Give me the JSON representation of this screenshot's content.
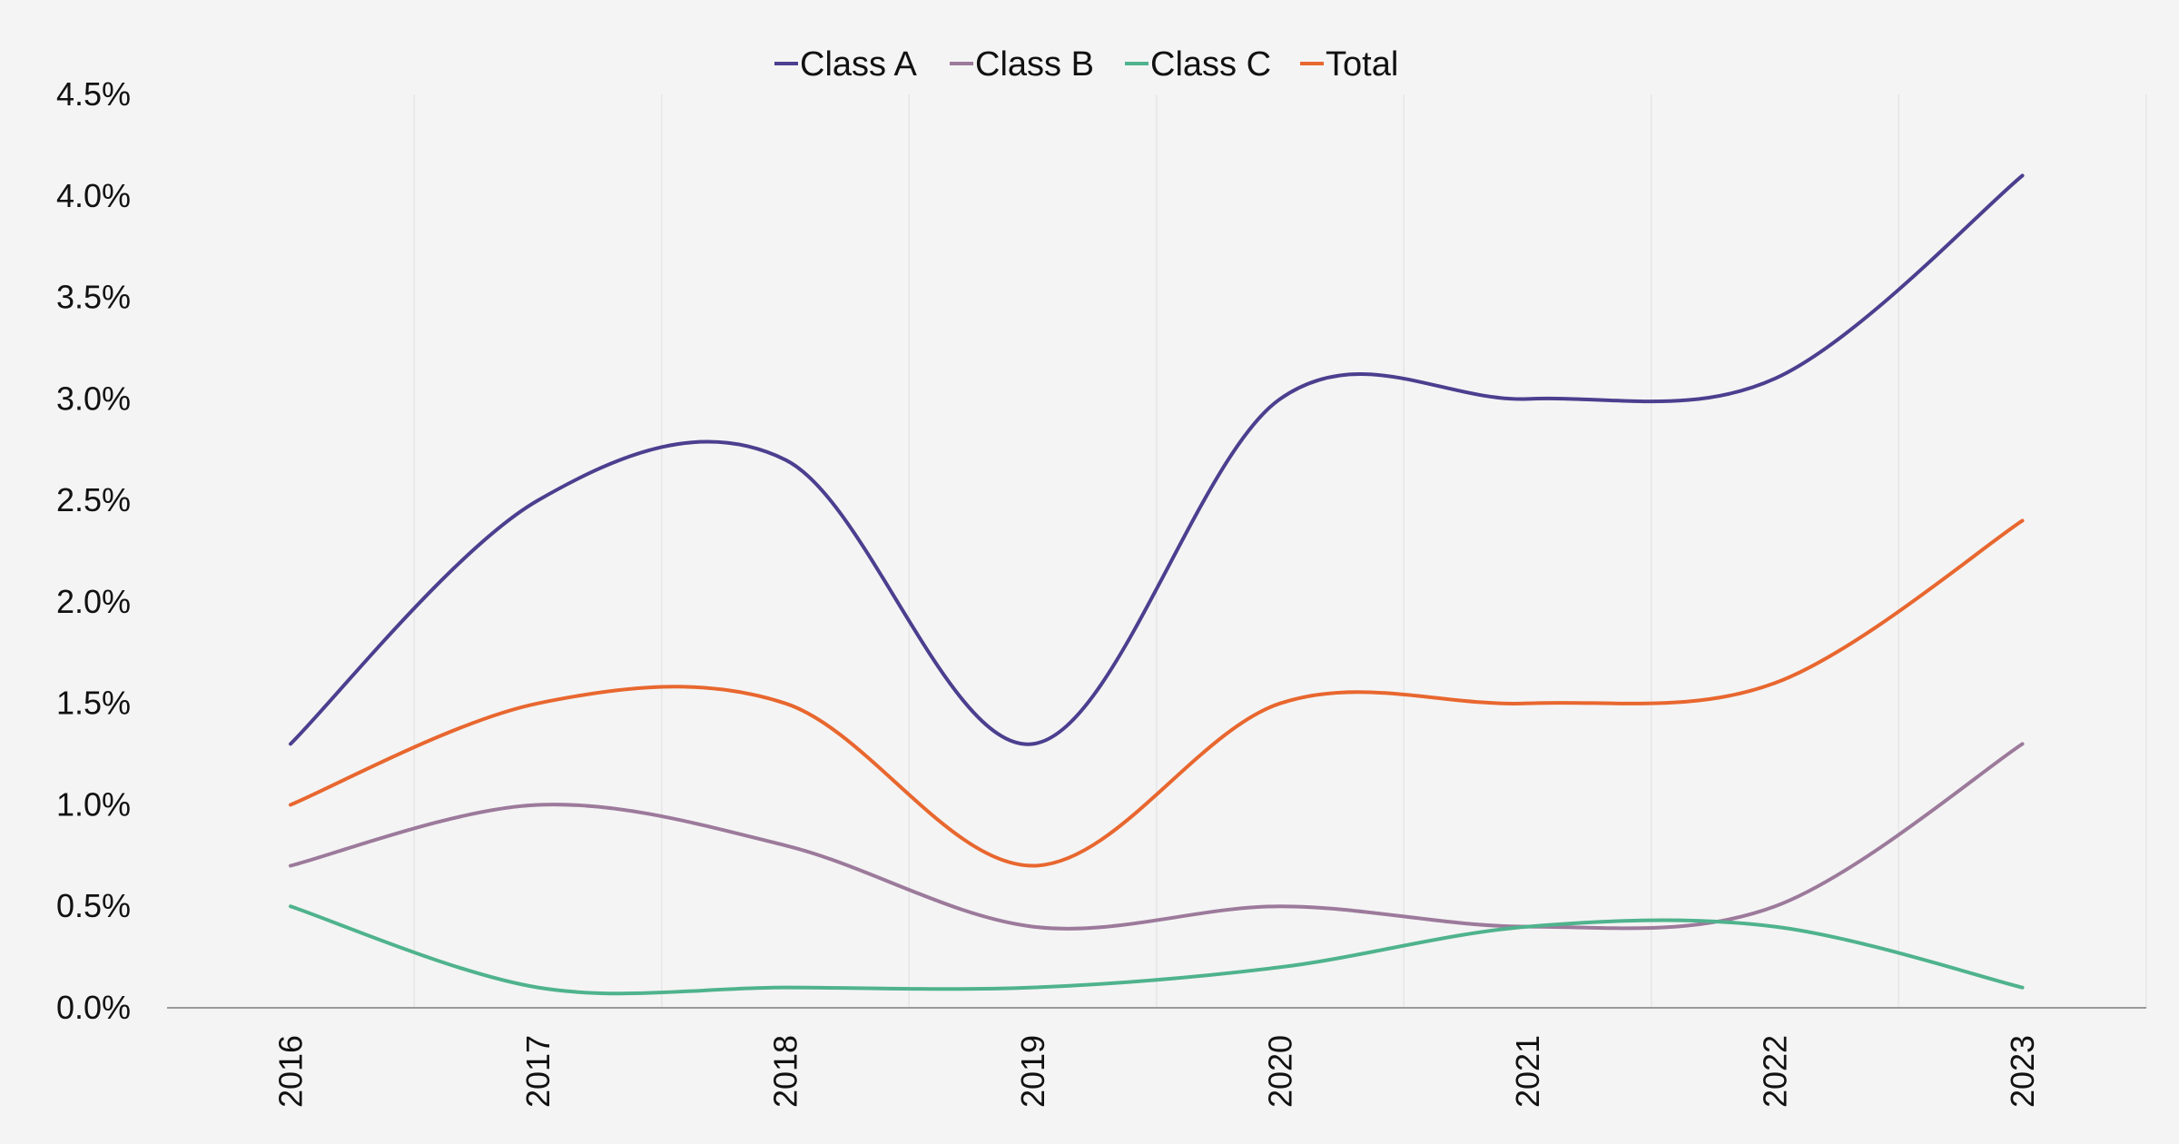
{
  "chart_data": {
    "type": "line",
    "x": [
      "2016",
      "2017",
      "2018",
      "2019",
      "2020",
      "2021",
      "2022",
      "2023"
    ],
    "ylim": [
      0,
      0.045
    ],
    "ytick_labels": [
      "0.0%",
      "0.5%",
      "1.0%",
      "1.5%",
      "2.0%",
      "2.5%",
      "3.0%",
      "3.5%",
      "4.0%",
      "4.5%"
    ],
    "yticks": [
      0,
      0.005,
      0.01,
      0.015,
      0.02,
      0.025,
      0.03,
      0.035,
      0.04,
      0.045
    ],
    "grid": "vertical",
    "legend": "top-center",
    "series": [
      {
        "name": "Class A",
        "color": "#4b3f8f",
        "values": [
          0.013,
          0.025,
          0.027,
          0.013,
          0.03,
          0.03,
          0.031,
          0.041
        ]
      },
      {
        "name": "Class B",
        "color": "#9c7a9b",
        "values": [
          0.007,
          0.01,
          0.008,
          0.004,
          0.005,
          0.004,
          0.005,
          0.013
        ]
      },
      {
        "name": "Class C",
        "color": "#4fb38d",
        "values": [
          0.005,
          0.001,
          0.001,
          0.001,
          0.002,
          0.004,
          0.004,
          0.001
        ]
      },
      {
        "name": "Total",
        "color": "#e8672f",
        "values": [
          0.01,
          0.015,
          0.015,
          0.007,
          0.015,
          0.015,
          0.016,
          0.024
        ]
      }
    ]
  }
}
